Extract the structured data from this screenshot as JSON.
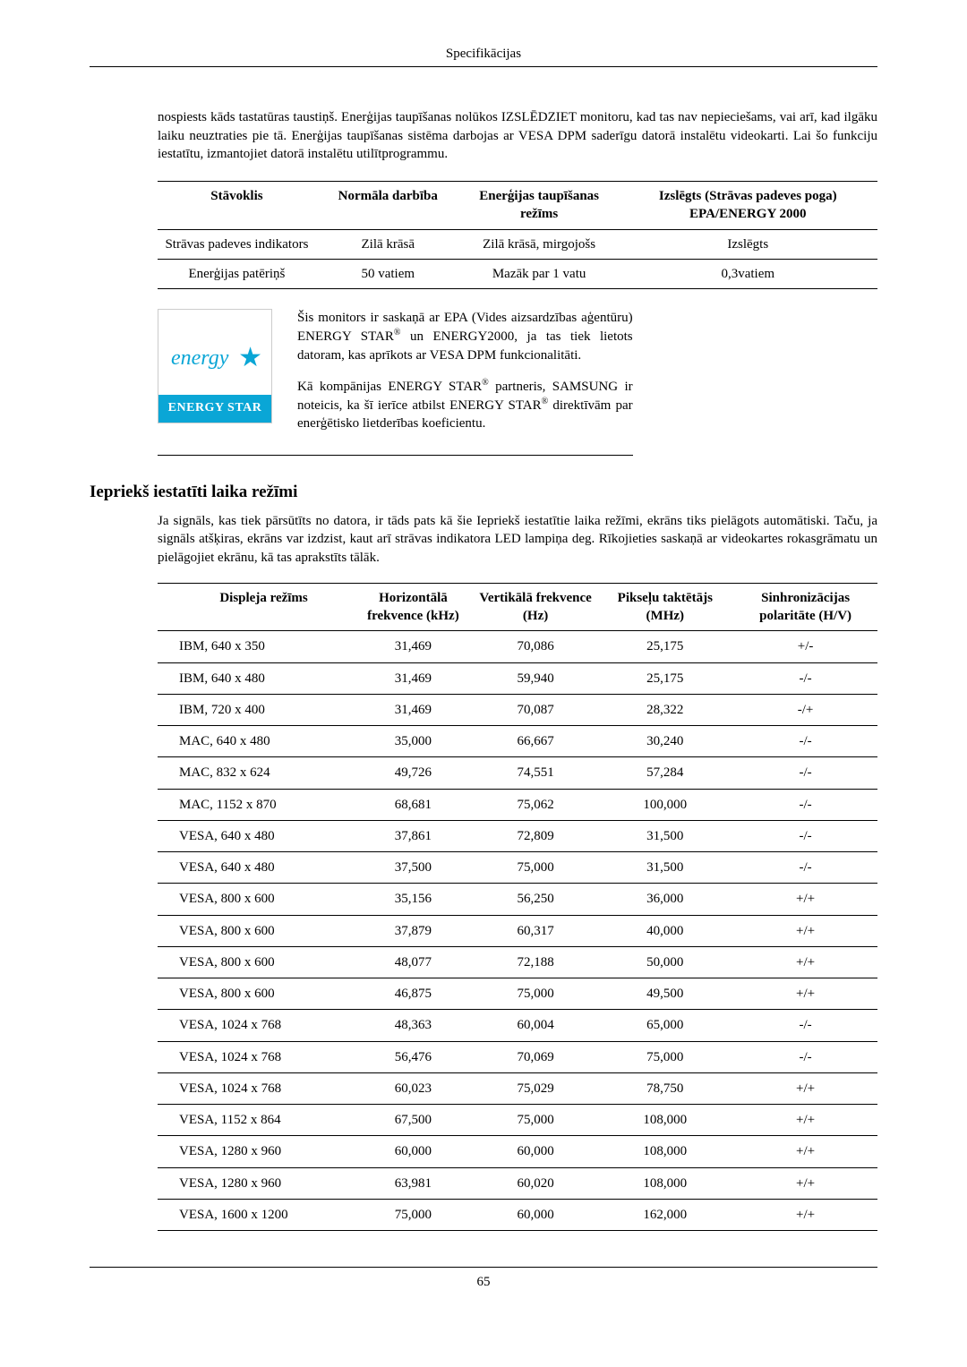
{
  "header": {
    "title": "Specifikācijas"
  },
  "intro_para": "nospiests kāds tastatūras taustiņš. Enerģijas taupīšanas nolūkos IZSLĒDZIET monitoru, kad tas nav nepieciešams, vai arī, kad ilgāku laiku neuztraties pie tā. Enerģijas taupīšanas sistēma darbojas ar VESA DPM saderīgu datorā instalētu videokarti. Lai šo funkciju iestatītu, izmantojiet datorā instalētu utilītprogrammu.",
  "table1": {
    "columns": [
      "Stāvoklis",
      "Normāla darbība",
      "Enerģijas taupīšanas režīms",
      "Izslēgts (Strāvas padeves poga) EPA/ENERGY 2000"
    ],
    "rows": [
      [
        "Strāvas padeves indikators",
        "Zilā krāsā",
        "Zilā krāsā, mirgojošs",
        "Izslēgts"
      ],
      [
        "Enerģijas patēriņš",
        "50 vatiem",
        "Mazāk par 1 vatu",
        "0,3vatiem"
      ]
    ]
  },
  "estar": {
    "logo_script": "energy",
    "logo_band": "ENERGY STAR",
    "p1_a": "Šis monitors ir saskaņā ar EPA (Vides aizsardzības aģentūru) ENERGY STAR",
    "p1_b": " un ENERGY2000, ja tas tiek lietots datoram, kas aprīkots ar VESA DPM funkcionalitāti.",
    "p2_a": "Kā kompānijas ENERGY STAR",
    "p2_b": " partneris, SAMSUNG ir noteicis, ka šī ierīce atbilst ENERGY STAR",
    "p2_c": " direktīvām par enerģētisko lietderības koeficientu.",
    "reg": "®"
  },
  "section2": {
    "heading": "Iepriekš iestatīti laika režīmi",
    "para": "Ja signāls, kas tiek pārsūtīts no datora, ir tāds pats kā šie Iepriekš iestatītie laika režīmi, ekrāns tiks pielāgots automātiski. Taču, ja signāls atšķiras, ekrāns var izdzist, kaut arī strāvas indikatora LED lampiņa deg. Rīkojieties saskaņā ar videokartes rokasgrāmatu un pielāgojiet ekrānu, kā tas aprakstīts tālāk."
  },
  "table2": {
    "columns": [
      "Displeja režīms",
      "Horizontālā frekvence (kHz)",
      "Vertikālā frekvence (Hz)",
      "Pikseļu taktētājs (MHz)",
      "Sinhronizācijas polaritāte (H/V)"
    ],
    "rows": [
      [
        "IBM, 640 x 350",
        "31,469",
        "70,086",
        "25,175",
        "+/-"
      ],
      [
        "IBM, 640 x 480",
        "31,469",
        "59,940",
        "25,175",
        "-/-"
      ],
      [
        "IBM, 720 x 400",
        "31,469",
        "70,087",
        "28,322",
        "-/+"
      ],
      [
        "MAC, 640 x 480",
        "35,000",
        "66,667",
        "30,240",
        "-/-"
      ],
      [
        "MAC, 832 x 624",
        "49,726",
        "74,551",
        "57,284",
        "-/-"
      ],
      [
        "MAC, 1152 x 870",
        "68,681",
        "75,062",
        "100,000",
        "-/-"
      ],
      [
        "VESA, 640 x 480",
        "37,861",
        "72,809",
        "31,500",
        "-/-"
      ],
      [
        "VESA, 640 x 480",
        "37,500",
        "75,000",
        "31,500",
        "-/-"
      ],
      [
        "VESA, 800 x 600",
        "35,156",
        "56,250",
        "36,000",
        "+/+"
      ],
      [
        "VESA, 800 x 600",
        "37,879",
        "60,317",
        "40,000",
        "+/+"
      ],
      [
        "VESA, 800 x 600",
        "48,077",
        "72,188",
        "50,000",
        "+/+"
      ],
      [
        "VESA, 800 x 600",
        "46,875",
        "75,000",
        "49,500",
        "+/+"
      ],
      [
        "VESA, 1024 x 768",
        "48,363",
        "60,004",
        "65,000",
        "-/-"
      ],
      [
        "VESA, 1024 x 768",
        "56,476",
        "70,069",
        "75,000",
        "-/-"
      ],
      [
        "VESA, 1024 x 768",
        "60,023",
        "75,029",
        "78,750",
        "+/+"
      ],
      [
        "VESA, 1152 x 864",
        "67,500",
        "75,000",
        "108,000",
        "+/+"
      ],
      [
        "VESA, 1280 x 960",
        "60,000",
        "60,000",
        "108,000",
        "+/+"
      ],
      [
        "VESA, 1280 x 960",
        "63,981",
        "60,020",
        "108,000",
        "+/+"
      ],
      [
        "VESA, 1600 x 1200",
        "75,000",
        "60,000",
        "162,000",
        "+/+"
      ]
    ]
  },
  "footer": {
    "page_no": "65"
  },
  "colors": {
    "rule": "#000000",
    "estar_blue": "#0aa6d6"
  }
}
